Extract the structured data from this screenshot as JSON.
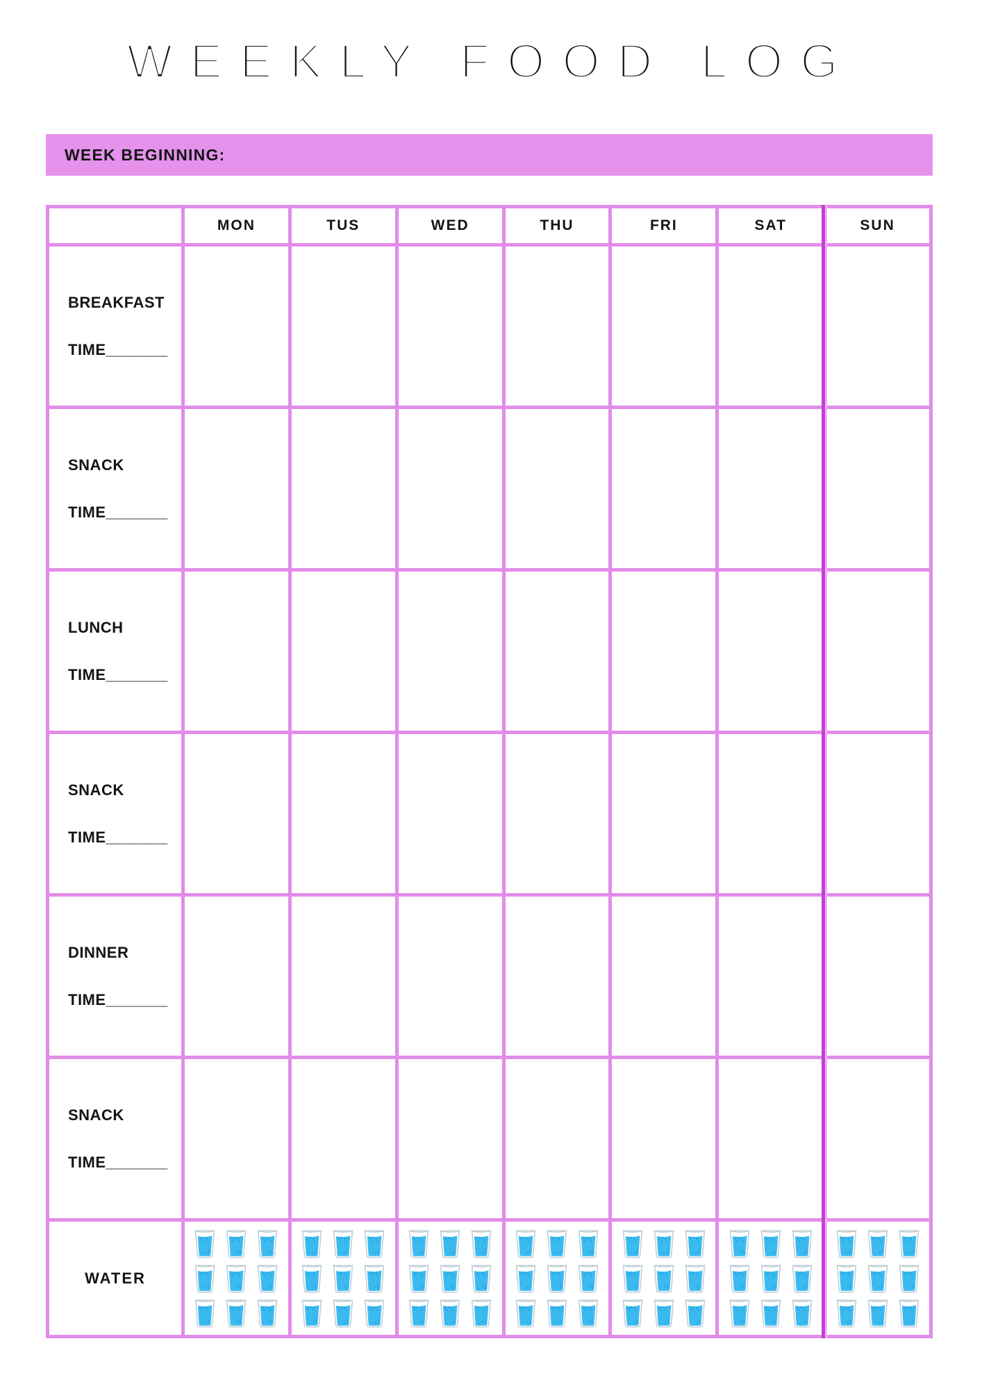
{
  "page": {
    "title": "WEEKLY FOOD LOG"
  },
  "banner": {
    "label": "WEEK BEGINNING:"
  },
  "colors": {
    "banner_bg": "#e592ec",
    "grid": "#e18ce9",
    "grid_dark": "#c23fd8",
    "grid_dark_light": "#efb2f3",
    "text": "#1a1a1a",
    "water_fill": "#3bbaf0",
    "water_bubble": "#1c9ede",
    "glass_outline": "#bccdd6"
  },
  "table": {
    "day_headers": [
      "MON",
      "TUS",
      "WED",
      "THU",
      "FRI",
      "SAT",
      "SUN"
    ],
    "meal_rows": [
      {
        "meal": "BREAKFAST",
        "time": "TIME_______"
      },
      {
        "meal": "SNACK",
        "time": "TIME_______"
      },
      {
        "meal": "LUNCH",
        "time": "TIME_______"
      },
      {
        "meal": "SNACK",
        "time": "TIME_______"
      },
      {
        "meal": "DINNER",
        "time": "TIME_______"
      },
      {
        "meal": "SNACK",
        "time": "TIME_______"
      }
    ],
    "water": {
      "label": "WATER",
      "glasses_per_day": 9,
      "icon": "water-glass-icon"
    }
  }
}
